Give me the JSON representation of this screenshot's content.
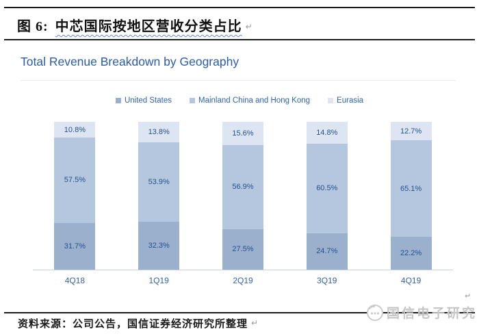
{
  "header": {
    "figure_label": "图 6:",
    "figure_title": "中芯国际按地区营收分类占比",
    "paragraph_mark": "↵"
  },
  "chart": {
    "title": "Total Revenue Breakdown by Geography"
  },
  "chart_data": {
    "type": "bar",
    "stacked": true,
    "unit": "%",
    "title": "Total Revenue Breakdown by Geography",
    "categories": [
      "4Q18",
      "1Q19",
      "2Q19",
      "3Q19",
      "4Q19"
    ],
    "series": [
      {
        "name": "United States",
        "color": "#9bb0cd",
        "values": [
          31.7,
          32.3,
          27.5,
          24.7,
          22.2
        ]
      },
      {
        "name": "Mainland China and Hong Kong",
        "color": "#b5c7de",
        "values": [
          57.5,
          53.9,
          56.9,
          60.5,
          65.1
        ]
      },
      {
        "name": "Eurasia",
        "color": "#dce5f1",
        "values": [
          10.8,
          13.8,
          15.6,
          14.8,
          12.7
        ]
      }
    ],
    "legend_position": "top-center",
    "ylim": [
      0,
      100
    ],
    "grid": false,
    "value_label_color": "#24508f",
    "axis_label_color": "#3263ae"
  },
  "footer": {
    "source_text": "资料来源：公司公告，国信证券经济研究所整理",
    "paragraph_mark": "↵",
    "logo_text": "国信电子研究"
  },
  "colors": {
    "chart_title": "#2a5ca9",
    "rule_black": "#1a1a1a",
    "axis_line": "#c3d1e2",
    "wavy_underline": "#5b8bd6",
    "watermark_gray": "#c6c6c6"
  }
}
